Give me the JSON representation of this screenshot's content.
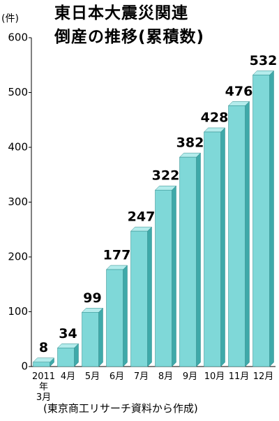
{
  "chart_data": {
    "type": "bar",
    "title": "東日本大震災関連\n倒産の推移(累積数)",
    "y_label": "(件)",
    "source": "(東京商工リサーチ資料から作成)",
    "categories": [
      "2011年\n3月",
      "4月",
      "5月",
      "6月",
      "7月",
      "8月",
      "9月",
      "10月",
      "11月",
      "12月"
    ],
    "values": [
      8,
      34,
      99,
      177,
      247,
      322,
      382,
      428,
      476,
      532
    ],
    "color": "#7fd8d8",
    "ylim": [
      0,
      600
    ],
    "yticks": [
      0,
      100,
      200,
      300,
      400,
      500,
      600
    ],
    "grid": false
  }
}
